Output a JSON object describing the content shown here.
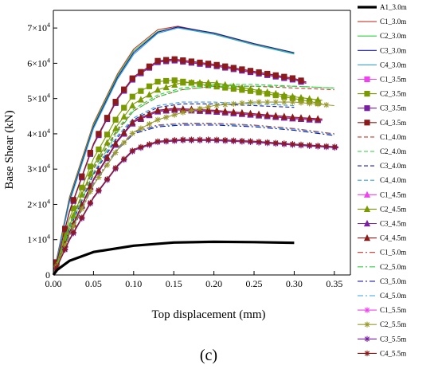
{
  "panel_label": "(c)",
  "chart_data": {
    "type": "line",
    "title": "",
    "xlabel": "Top displacement (mm)",
    "ylabel": "Base Shear (kN)",
    "xlim": [
      0,
      0.37
    ],
    "ylim": [
      0,
      75000
    ],
    "x_ticks": [
      {
        "value": 0.0,
        "label": "0.00"
      },
      {
        "value": 0.05,
        "label": "0.05"
      },
      {
        "value": 0.1,
        "label": "0.10"
      },
      {
        "value": 0.15,
        "label": "0.15"
      },
      {
        "value": 0.2,
        "label": "0.20"
      },
      {
        "value": 0.25,
        "label": "0.25"
      },
      {
        "value": 0.3,
        "label": "0.30"
      },
      {
        "value": 0.35,
        "label": "0.35"
      }
    ],
    "y_ticks": [
      {
        "value": 0,
        "base": "0",
        "exp": ""
      },
      {
        "value": 10000,
        "base": "1×10",
        "exp": "4"
      },
      {
        "value": 20000,
        "base": "2×10",
        "exp": "4"
      },
      {
        "value": 30000,
        "base": "3×10",
        "exp": "4"
      },
      {
        "value": 40000,
        "base": "4×10",
        "exp": "4"
      },
      {
        "value": 50000,
        "base": "5×10",
        "exp": "4"
      },
      {
        "value": 60000,
        "base": "6×10",
        "exp": "4"
      },
      {
        "value": 70000,
        "base": "7×10",
        "exp": "4"
      }
    ],
    "grid": false,
    "legend_position": "right",
    "series": [
      {
        "name": "A1_3.0m",
        "color": "#000000",
        "style": "thick",
        "marker": "none",
        "x": [
          0,
          0.005,
          0.02,
          0.05,
          0.1,
          0.15,
          0.2,
          0.25,
          0.3
        ],
        "y": [
          0,
          1500,
          4000,
          6500,
          8300,
          9200,
          9400,
          9300,
          9100
        ]
      },
      {
        "name": "C1_3.0m",
        "color": "#c0392b",
        "style": "solid",
        "marker": "none",
        "x": [
          0,
          0.02,
          0.05,
          0.08,
          0.1,
          0.13,
          0.155,
          0.2,
          0.25,
          0.3
        ],
        "y": [
          0,
          22000,
          43000,
          57000,
          64000,
          69500,
          70500,
          68500,
          65500,
          63000
        ]
      },
      {
        "name": "C2_3.0m",
        "color": "#2ecc40",
        "style": "solid",
        "marker": "none",
        "x": [
          0,
          0.02,
          0.05,
          0.08,
          0.1,
          0.13,
          0.155,
          0.2,
          0.25,
          0.3
        ],
        "y": [
          0,
          21500,
          42500,
          56500,
          63500,
          69000,
          70200,
          68300,
          65300,
          62800
        ]
      },
      {
        "name": "C3_3.0m",
        "color": "#1a1aa8",
        "style": "solid",
        "marker": "none",
        "x": [
          0,
          0.02,
          0.05,
          0.08,
          0.1,
          0.13,
          0.155,
          0.2,
          0.25,
          0.3
        ],
        "y": [
          0,
          21000,
          42000,
          56000,
          63000,
          68800,
          70300,
          68600,
          65600,
          63000
        ]
      },
      {
        "name": "C4_3.0m",
        "color": "#3aa0e0",
        "style": "solid",
        "marker": "none",
        "x": [
          0,
          0.02,
          0.05,
          0.08,
          0.1,
          0.13,
          0.155,
          0.2,
          0.25,
          0.3
        ],
        "y": [
          0,
          20500,
          41500,
          55500,
          62500,
          68500,
          70000,
          68200,
          65200,
          62600
        ]
      },
      {
        "name": "C1_3.5m",
        "color": "#ee44ee",
        "style": "solid",
        "marker": "square",
        "x": [
          0,
          0.02,
          0.05,
          0.08,
          0.1,
          0.13,
          0.15,
          0.2,
          0.25,
          0.3,
          0.315
        ],
        "y": [
          0,
          18000,
          37000,
          50000,
          56000,
          60500,
          61000,
          59500,
          57500,
          55500,
          54500
        ]
      },
      {
        "name": "C2_3.5m",
        "color": "#7a9a01",
        "style": "solid",
        "marker": "square",
        "x": [
          0,
          0.02,
          0.05,
          0.08,
          0.1,
          0.13,
          0.15,
          0.2,
          0.25,
          0.3,
          0.335
        ],
        "y": [
          0,
          16000,
          33000,
          45000,
          51000,
          54800,
          55200,
          53500,
          52000,
          50000,
          48500
        ]
      },
      {
        "name": "C3_3.5m",
        "color": "#7a1fa2",
        "style": "solid",
        "marker": "square",
        "x": [
          0,
          0.02,
          0.05,
          0.08,
          0.1,
          0.13,
          0.15,
          0.2,
          0.25,
          0.3,
          0.315
        ],
        "y": [
          0,
          17800,
          36800,
          49800,
          55800,
          60300,
          60800,
          59300,
          57300,
          55300,
          54300
        ]
      },
      {
        "name": "C4_3.5m",
        "color": "#8b1a1a",
        "style": "solid",
        "marker": "square",
        "x": [
          0,
          0.02,
          0.05,
          0.08,
          0.1,
          0.13,
          0.15,
          0.2,
          0.25,
          0.3,
          0.315
        ],
        "y": [
          0,
          18100,
          37200,
          50200,
          56200,
          60700,
          61200,
          59700,
          57700,
          55700,
          54700
        ]
      },
      {
        "name": "C1_4.0m",
        "color": "#c0392b",
        "style": "dash",
        "marker": "none",
        "x": [
          0,
          0.02,
          0.05,
          0.08,
          0.1,
          0.13,
          0.16,
          0.2,
          0.25,
          0.3,
          0.35
        ],
        "y": [
          0,
          14000,
          30000,
          41000,
          46500,
          50500,
          52500,
          53500,
          53500,
          53000,
          52500
        ]
      },
      {
        "name": "C2_4.0m",
        "color": "#2ecc40",
        "style": "dash",
        "marker": "none",
        "x": [
          0,
          0.02,
          0.05,
          0.08,
          0.1,
          0.13,
          0.16,
          0.2,
          0.25,
          0.3,
          0.35
        ],
        "y": [
          0,
          14500,
          30500,
          41500,
          47000,
          51000,
          53000,
          54000,
          54000,
          53500,
          53000
        ]
      },
      {
        "name": "C3_4.0m",
        "color": "#1a1aa8",
        "style": "dash",
        "marker": "none",
        "x": [
          0,
          0.02,
          0.05,
          0.08,
          0.1,
          0.13,
          0.16,
          0.2,
          0.25,
          0.3
        ],
        "y": [
          0,
          13000,
          28500,
          39000,
          44000,
          47500,
          48500,
          48500,
          48000,
          47500
        ]
      },
      {
        "name": "C4_4.0m",
        "color": "#3aa0e0",
        "style": "dash",
        "marker": "none",
        "x": [
          0,
          0.02,
          0.05,
          0.08,
          0.1,
          0.13,
          0.16,
          0.2,
          0.25,
          0.3
        ],
        "y": [
          0,
          13500,
          29000,
          39500,
          44500,
          48000,
          49000,
          49000,
          48500,
          48000
        ]
      },
      {
        "name": "C1_4.5m",
        "color": "#ee44ee",
        "style": "solid",
        "marker": "triangle",
        "x": [
          0,
          0.02,
          0.05,
          0.08,
          0.1,
          0.13,
          0.15,
          0.2,
          0.25,
          0.3,
          0.335
        ],
        "y": [
          0,
          12000,
          27000,
          38000,
          43500,
          46500,
          47000,
          46500,
          45500,
          44500,
          44000
        ]
      },
      {
        "name": "C2_4.5m",
        "color": "#7a9a01",
        "style": "solid",
        "marker": "triangle",
        "x": [
          0,
          0.02,
          0.05,
          0.08,
          0.1,
          0.13,
          0.16,
          0.2,
          0.25,
          0.3,
          0.335
        ],
        "y": [
          0,
          14000,
          31000,
          42500,
          48500,
          52500,
          54500,
          54500,
          52500,
          50500,
          49500
        ]
      },
      {
        "name": "C3_4.5m",
        "color": "#7a1fa2",
        "style": "solid",
        "marker": "triangle",
        "x": [
          0,
          0.02,
          0.05,
          0.08,
          0.1,
          0.13,
          0.15,
          0.2,
          0.25,
          0.3,
          0.335
        ],
        "y": [
          0,
          11800,
          26800,
          37800,
          43300,
          46300,
          46800,
          46300,
          45300,
          44300,
          43800
        ]
      },
      {
        "name": "C4_4.5m",
        "color": "#8b1a1a",
        "style": "solid",
        "marker": "triangle",
        "x": [
          0,
          0.02,
          0.05,
          0.08,
          0.1,
          0.13,
          0.15,
          0.2,
          0.25,
          0.3,
          0.335
        ],
        "y": [
          0,
          12100,
          27200,
          38200,
          43700,
          46700,
          47200,
          46700,
          45700,
          44700,
          44200
        ]
      },
      {
        "name": "C1_5.0m",
        "color": "#c0392b",
        "style": "dashdot",
        "marker": "none",
        "x": [
          0,
          0.02,
          0.05,
          0.08,
          0.1,
          0.13,
          0.16,
          0.2,
          0.25,
          0.3,
          0.35
        ],
        "y": [
          0,
          11500,
          26000,
          36000,
          40500,
          42500,
          43000,
          43000,
          42500,
          41500,
          40000
        ]
      },
      {
        "name": "C2_5.0m",
        "color": "#2ecc40",
        "style": "dashdot",
        "marker": "none",
        "x": [
          0,
          0.02,
          0.05,
          0.08,
          0.1,
          0.13,
          0.16,
          0.2,
          0.25,
          0.3,
          0.35
        ],
        "y": [
          0,
          13000,
          29000,
          40500,
          46500,
          50500,
          52500,
          53500,
          53500,
          53500,
          53000
        ]
      },
      {
        "name": "C3_5.0m",
        "color": "#1a1aa8",
        "style": "dashdot",
        "marker": "none",
        "x": [
          0,
          0.02,
          0.05,
          0.08,
          0.1,
          0.13,
          0.16,
          0.2,
          0.25,
          0.3,
          0.35
        ],
        "y": [
          0,
          11000,
          25500,
          35500,
          40000,
          42000,
          42500,
          42500,
          42000,
          41000,
          39500
        ]
      },
      {
        "name": "C4_5.0m",
        "color": "#3aa0e0",
        "style": "dashdot",
        "marker": "none",
        "x": [
          0,
          0.02,
          0.05,
          0.08,
          0.1,
          0.13,
          0.16,
          0.2,
          0.25,
          0.3,
          0.35
        ],
        "y": [
          0,
          11200,
          25800,
          35800,
          40300,
          42300,
          42800,
          42800,
          42300,
          41300,
          39800
        ]
      },
      {
        "name": "C1_5.5m",
        "color": "#ee44ee",
        "style": "solid",
        "marker": "asterisk",
        "x": [
          0,
          0.02,
          0.05,
          0.08,
          0.1,
          0.13,
          0.16,
          0.2,
          0.25,
          0.3,
          0.355
        ],
        "y": [
          0,
          10000,
          22000,
          31000,
          35500,
          37800,
          38300,
          38300,
          37800,
          37000,
          36200
        ]
      },
      {
        "name": "C2_5.5m",
        "color": "#9a9a30",
        "style": "solid",
        "marker": "asterisk",
        "x": [
          0,
          0.02,
          0.05,
          0.08,
          0.1,
          0.13,
          0.16,
          0.2,
          0.25,
          0.3,
          0.35
        ],
        "y": [
          0,
          11500,
          25500,
          35500,
          40500,
          44000,
          46000,
          48000,
          49000,
          49000,
          48000
        ]
      },
      {
        "name": "C3_5.5m",
        "color": "#7a1fa2",
        "style": "solid",
        "marker": "asterisk",
        "x": [
          0,
          0.02,
          0.05,
          0.08,
          0.1,
          0.13,
          0.16,
          0.2,
          0.25,
          0.3,
          0.355
        ],
        "y": [
          0,
          9800,
          21800,
          30800,
          35300,
          37600,
          38100,
          38100,
          37600,
          36800,
          36000
        ]
      },
      {
        "name": "C4_5.5m",
        "color": "#8b1a1a",
        "style": "solid",
        "marker": "asterisk",
        "x": [
          0,
          0.02,
          0.05,
          0.08,
          0.1,
          0.13,
          0.16,
          0.2,
          0.25,
          0.3,
          0.355
        ],
        "y": [
          0,
          10100,
          22100,
          31100,
          35600,
          37900,
          38400,
          38400,
          37900,
          37100,
          36300
        ]
      }
    ]
  }
}
